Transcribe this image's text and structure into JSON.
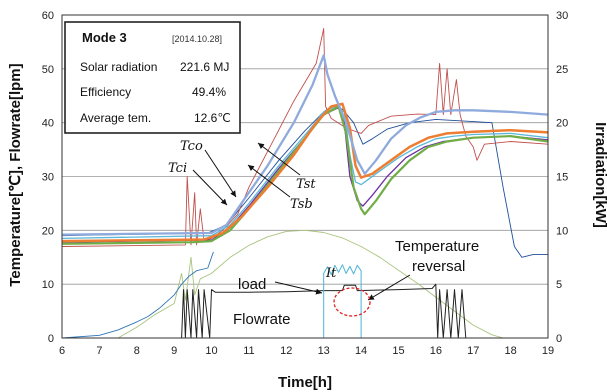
{
  "chart_data": {
    "type": "line",
    "x_axis": {
      "label": "Time[h]",
      "min": 6,
      "max": 19,
      "ticks": [
        6,
        7,
        8,
        9,
        10,
        11,
        12,
        13,
        14,
        15,
        16,
        17,
        18,
        19
      ]
    },
    "y_left": {
      "label": "Temperature[℃],  Flowrate[lpm]",
      "min": 0,
      "max": 60,
      "ticks": [
        0,
        10,
        20,
        30,
        40,
        50,
        60
      ]
    },
    "y_right": {
      "label": "Irradiation[kW]",
      "min": 0,
      "max": 30,
      "ticks": [
        0,
        5,
        10,
        15,
        20,
        25,
        30
      ]
    },
    "grid": "horizontal",
    "info_box": {
      "title": "Mode  3",
      "date": "[2014.10.28]",
      "rows": [
        {
          "label": "Solar radiation",
          "value": "221.6 MJ"
        },
        {
          "label": "Efficiency",
          "value": "49.4%"
        },
        {
          "label": "Average tem.",
          "value": "12.6℃"
        }
      ]
    },
    "series": [
      {
        "id": "tco",
        "axis": "left",
        "color": "#1f4e9c",
        "width": 0.9,
        "points": [
          [
            6,
            19
          ],
          [
            9.9,
            19.5
          ],
          [
            10.4,
            21
          ],
          [
            11,
            26
          ],
          [
            11.8,
            33
          ],
          [
            12.5,
            38.5
          ],
          [
            13,
            42
          ],
          [
            13.2,
            43
          ],
          [
            13.5,
            42.5
          ],
          [
            13.8,
            40
          ],
          [
            14.05,
            36
          ],
          [
            14.3,
            37
          ],
          [
            14.7,
            38.8
          ],
          [
            15.3,
            40
          ],
          [
            16,
            40.6
          ],
          [
            17,
            40.2
          ],
          [
            17.5,
            40
          ],
          [
            17.8,
            28
          ],
          [
            18.1,
            17
          ],
          [
            18.3,
            15
          ],
          [
            18.6,
            15.5
          ],
          [
            19,
            15.5
          ]
        ]
      },
      {
        "id": "tci",
        "axis": "left",
        "color": "#c0504d",
        "width": 0.9,
        "points": [
          [
            6,
            17
          ],
          [
            9.3,
            17.3
          ],
          [
            9.35,
            30
          ],
          [
            9.45,
            17.3
          ],
          [
            9.55,
            27
          ],
          [
            9.6,
            17.3
          ],
          [
            9.7,
            24
          ],
          [
            9.8,
            18
          ],
          [
            10,
            18.5
          ],
          [
            10.3,
            20
          ],
          [
            10.7,
            23
          ],
          [
            11,
            28
          ],
          [
            11.6,
            36
          ],
          [
            12.2,
            44
          ],
          [
            12.8,
            51
          ],
          [
            13,
            57.5
          ],
          [
            13.05,
            43
          ],
          [
            13.2,
            40.8
          ],
          [
            13.6,
            39
          ],
          [
            14,
            38
          ],
          [
            14.2,
            39.5
          ],
          [
            14.8,
            41.2
          ],
          [
            15.5,
            41.6
          ],
          [
            16,
            41.5
          ],
          [
            16.1,
            51
          ],
          [
            16.2,
            41.5
          ],
          [
            16.3,
            50
          ],
          [
            16.4,
            41.5
          ],
          [
            16.55,
            48
          ],
          [
            16.65,
            41.5
          ],
          [
            16.8,
            37.5
          ],
          [
            17,
            35.5
          ],
          [
            17.1,
            33
          ],
          [
            17.3,
            36
          ],
          [
            18,
            36.5
          ],
          [
            19,
            36
          ]
        ]
      },
      {
        "id": "tst",
        "axis": "left",
        "color": "#5bb8d8",
        "width": 1.3,
        "points": [
          [
            6,
            18.5
          ],
          [
            10,
            19
          ],
          [
            10.5,
            21
          ],
          [
            11,
            25
          ],
          [
            11.8,
            32
          ],
          [
            12.6,
            38.5
          ],
          [
            13,
            42
          ],
          [
            13.3,
            43
          ],
          [
            13.55,
            42
          ],
          [
            13.7,
            34
          ],
          [
            13.85,
            29
          ],
          [
            14,
            28.5
          ],
          [
            14.2,
            29.5
          ],
          [
            14.6,
            31.5
          ],
          [
            15,
            33.5
          ],
          [
            15.5,
            35.5
          ],
          [
            16,
            37
          ],
          [
            16.5,
            37.5
          ],
          [
            17,
            37.8
          ],
          [
            18,
            38
          ],
          [
            19,
            37.2
          ]
        ]
      },
      {
        "id": "tsb",
        "axis": "left",
        "color": "#7030a0",
        "width": 1.3,
        "points": [
          [
            6,
            17.8
          ],
          [
            10,
            18.2
          ],
          [
            10.5,
            20.5
          ],
          [
            11,
            24.5
          ],
          [
            11.8,
            31.5
          ],
          [
            12.6,
            38
          ],
          [
            13,
            41.5
          ],
          [
            13.4,
            42.8
          ],
          [
            13.55,
            40
          ],
          [
            13.7,
            30
          ],
          [
            13.9,
            25.5
          ],
          [
            14.05,
            24.5
          ],
          [
            14.3,
            26.5
          ],
          [
            14.7,
            30
          ],
          [
            15.2,
            33.5
          ],
          [
            15.7,
            35.5
          ],
          [
            16.2,
            36.5
          ],
          [
            17,
            37.2
          ],
          [
            18,
            37.5
          ],
          [
            19,
            36.8
          ]
        ]
      },
      {
        "id": "green",
        "axis": "left",
        "color": "#70ad47",
        "width": 2.2,
        "points": [
          [
            6,
            17.5
          ],
          [
            9.5,
            17.8
          ],
          [
            10,
            18
          ],
          [
            10.5,
            20
          ],
          [
            11,
            24
          ],
          [
            11.8,
            31
          ],
          [
            12.6,
            38
          ],
          [
            13,
            41.5
          ],
          [
            13.4,
            43
          ],
          [
            13.6,
            38
          ],
          [
            13.8,
            28
          ],
          [
            14,
            24
          ],
          [
            14.1,
            23
          ],
          [
            14.4,
            25.5
          ],
          [
            14.8,
            29.5
          ],
          [
            15.3,
            33
          ],
          [
            15.8,
            35.5
          ],
          [
            16.3,
            36.5
          ],
          [
            17,
            37.2
          ],
          [
            18,
            37.5
          ],
          [
            19,
            36.5
          ]
        ]
      },
      {
        "id": "orange",
        "axis": "left",
        "color": "#ed7d31",
        "width": 2.5,
        "points": [
          [
            6,
            18
          ],
          [
            9.8,
            18.3
          ],
          [
            10.3,
            19.5
          ],
          [
            10.8,
            22.5
          ],
          [
            11.5,
            28
          ],
          [
            12.2,
            34
          ],
          [
            12.8,
            40
          ],
          [
            13.2,
            43
          ],
          [
            13.5,
            43.5
          ],
          [
            13.7,
            39
          ],
          [
            13.85,
            32
          ],
          [
            14,
            29.8
          ],
          [
            14.3,
            30.5
          ],
          [
            14.8,
            33
          ],
          [
            15.3,
            35.5
          ],
          [
            15.8,
            37.2
          ],
          [
            16.3,
            38
          ],
          [
            17,
            38.3
          ],
          [
            18,
            38.6
          ],
          [
            19,
            38.2
          ]
        ]
      },
      {
        "id": "blue_thick",
        "axis": "left",
        "color": "#8faadc",
        "width": 2.3,
        "points": [
          [
            6,
            19.2
          ],
          [
            10,
            19.5
          ],
          [
            10.4,
            21
          ],
          [
            10.8,
            25
          ],
          [
            11.5,
            32
          ],
          [
            12.2,
            40
          ],
          [
            12.7,
            47
          ],
          [
            13,
            52.5
          ],
          [
            13.1,
            49
          ],
          [
            13.3,
            45
          ],
          [
            13.6,
            40
          ],
          [
            13.9,
            33
          ],
          [
            14.1,
            30.5
          ],
          [
            14.4,
            33
          ],
          [
            14.8,
            37
          ],
          [
            15.2,
            39.5
          ],
          [
            15.6,
            41
          ],
          [
            16,
            42
          ],
          [
            16.5,
            42.3
          ],
          [
            17,
            42.3
          ],
          [
            18,
            42
          ],
          [
            19,
            41.5
          ]
        ]
      },
      {
        "id": "irradiation",
        "axis": "right",
        "color": "#a9c47f",
        "width": 0.9,
        "points": [
          [
            6,
            0
          ],
          [
            7.5,
            0
          ],
          [
            8,
            1
          ],
          [
            8.5,
            2.2
          ],
          [
            9,
            3.2
          ],
          [
            9.2,
            6
          ],
          [
            9.3,
            3.5
          ],
          [
            9.45,
            7.5
          ],
          [
            9.55,
            4
          ],
          [
            9.7,
            5.5
          ],
          [
            10,
            6
          ],
          [
            10.5,
            7.5
          ],
          [
            11,
            8.6
          ],
          [
            11.5,
            9.4
          ],
          [
            12,
            9.9
          ],
          [
            12.5,
            10
          ],
          [
            13,
            9.8
          ],
          [
            13.5,
            9.3
          ],
          [
            14,
            8.5
          ],
          [
            14.5,
            7.5
          ],
          [
            15,
            6.3
          ],
          [
            15.5,
            5.1
          ],
          [
            16,
            3.8
          ],
          [
            16.5,
            2.5
          ],
          [
            17,
            1.2
          ],
          [
            17.5,
            0.3
          ],
          [
            17.8,
            0
          ],
          [
            19,
            0
          ]
        ]
      },
      {
        "id": "flow_blue",
        "axis": "left",
        "color": "#2e75b6",
        "width": 0.9,
        "points": [
          [
            6,
            0
          ],
          [
            7,
            0.5
          ],
          [
            7.5,
            1.5
          ],
          [
            8,
            3
          ],
          [
            8.3,
            4
          ],
          [
            8.6,
            5.5
          ],
          [
            9,
            8
          ],
          [
            9.2,
            10
          ],
          [
            9.4,
            11.5
          ],
          [
            9.6,
            12.5
          ],
          [
            9.9,
            13
          ],
          [
            10.05,
            16
          ]
        ]
      },
      {
        "id": "flowrate",
        "axis": "left",
        "color": "#222222",
        "width": 1.0,
        "points": [
          [
            6,
            0
          ],
          [
            9.2,
            0
          ],
          [
            9.25,
            9
          ],
          [
            9.3,
            0
          ],
          [
            9.35,
            9
          ],
          [
            9.45,
            0
          ],
          [
            9.5,
            9
          ],
          [
            9.6,
            0
          ],
          [
            9.65,
            9
          ],
          [
            9.75,
            0
          ],
          [
            9.8,
            9
          ],
          [
            9.95,
            0
          ],
          [
            10.0,
            9
          ],
          [
            10.1,
            8.5
          ],
          [
            11,
            8.5
          ],
          [
            12,
            8.6
          ],
          [
            13,
            8.8
          ],
          [
            13.5,
            8.8
          ],
          [
            13.55,
            9.8
          ],
          [
            13.85,
            9.8
          ],
          [
            13.9,
            8.8
          ],
          [
            15,
            9
          ],
          [
            15.9,
            9.2
          ],
          [
            16,
            10
          ],
          [
            16.05,
            0
          ],
          [
            16.1,
            9
          ],
          [
            16.2,
            0
          ],
          [
            16.3,
            9
          ],
          [
            16.4,
            0
          ],
          [
            16.5,
            9
          ],
          [
            16.6,
            0
          ],
          [
            16.7,
            9
          ],
          [
            16.8,
            0
          ],
          [
            19,
            0
          ]
        ]
      },
      {
        "id": "it",
        "axis": "left",
        "color": "#4bb5d6",
        "width": 1.0,
        "points": [
          [
            13,
            0
          ],
          [
            13,
            12
          ],
          [
            13.1,
            13.2
          ],
          [
            13.2,
            11.8
          ],
          [
            13.3,
            13.5
          ],
          [
            13.4,
            12.2
          ],
          [
            13.5,
            13.6
          ],
          [
            13.6,
            12
          ],
          [
            13.7,
            13.3
          ],
          [
            13.8,
            11.9
          ],
          [
            13.9,
            13.5
          ],
          [
            14,
            12.5
          ],
          [
            14,
            0
          ]
        ]
      }
    ],
    "annotations": {
      "tco": "Tco",
      "tci": "Tci",
      "tst": "Tst",
      "tsb": "Tsb",
      "it": "It",
      "load": "load",
      "flowrate": "Flowrate",
      "reversal_line1": "Temperature",
      "reversal_line2": "reversal"
    }
  }
}
